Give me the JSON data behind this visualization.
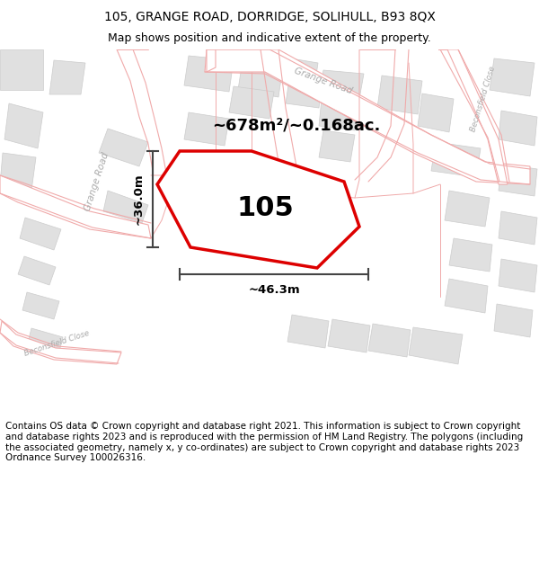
{
  "title_line1": "105, GRANGE ROAD, DORRIDGE, SOLIHULL, B93 8QX",
  "title_line2": "Map shows position and indicative extent of the property.",
  "footer": "Contains OS data © Crown copyright and database right 2021. This information is subject to Crown copyright and database rights 2023 and is reproduced with the permission of HM Land Registry. The polygons (including the associated geometry, namely x, y co-ordinates) are subject to Crown copyright and database rights 2023 Ordnance Survey 100026316.",
  "area_label": "~678m²/~0.168ac.",
  "number_label": "105",
  "dim_horiz": "~46.3m",
  "dim_vert": "~36.0m",
  "map_bg": "#ffffff",
  "road_color": "#f0aaaa",
  "road_fill": "#ffffff",
  "boundary_color": "#dd0000",
  "dim_line_color": "#444444",
  "building_fill": "#e0e0e0",
  "building_stroke": "#cccccc",
  "road_label_color": "#aaaaaa",
  "figsize": [
    6.0,
    6.25
  ],
  "dpi": 100,
  "title_fontsize": 10,
  "subtitle_fontsize": 9,
  "footer_fontsize": 7.5
}
